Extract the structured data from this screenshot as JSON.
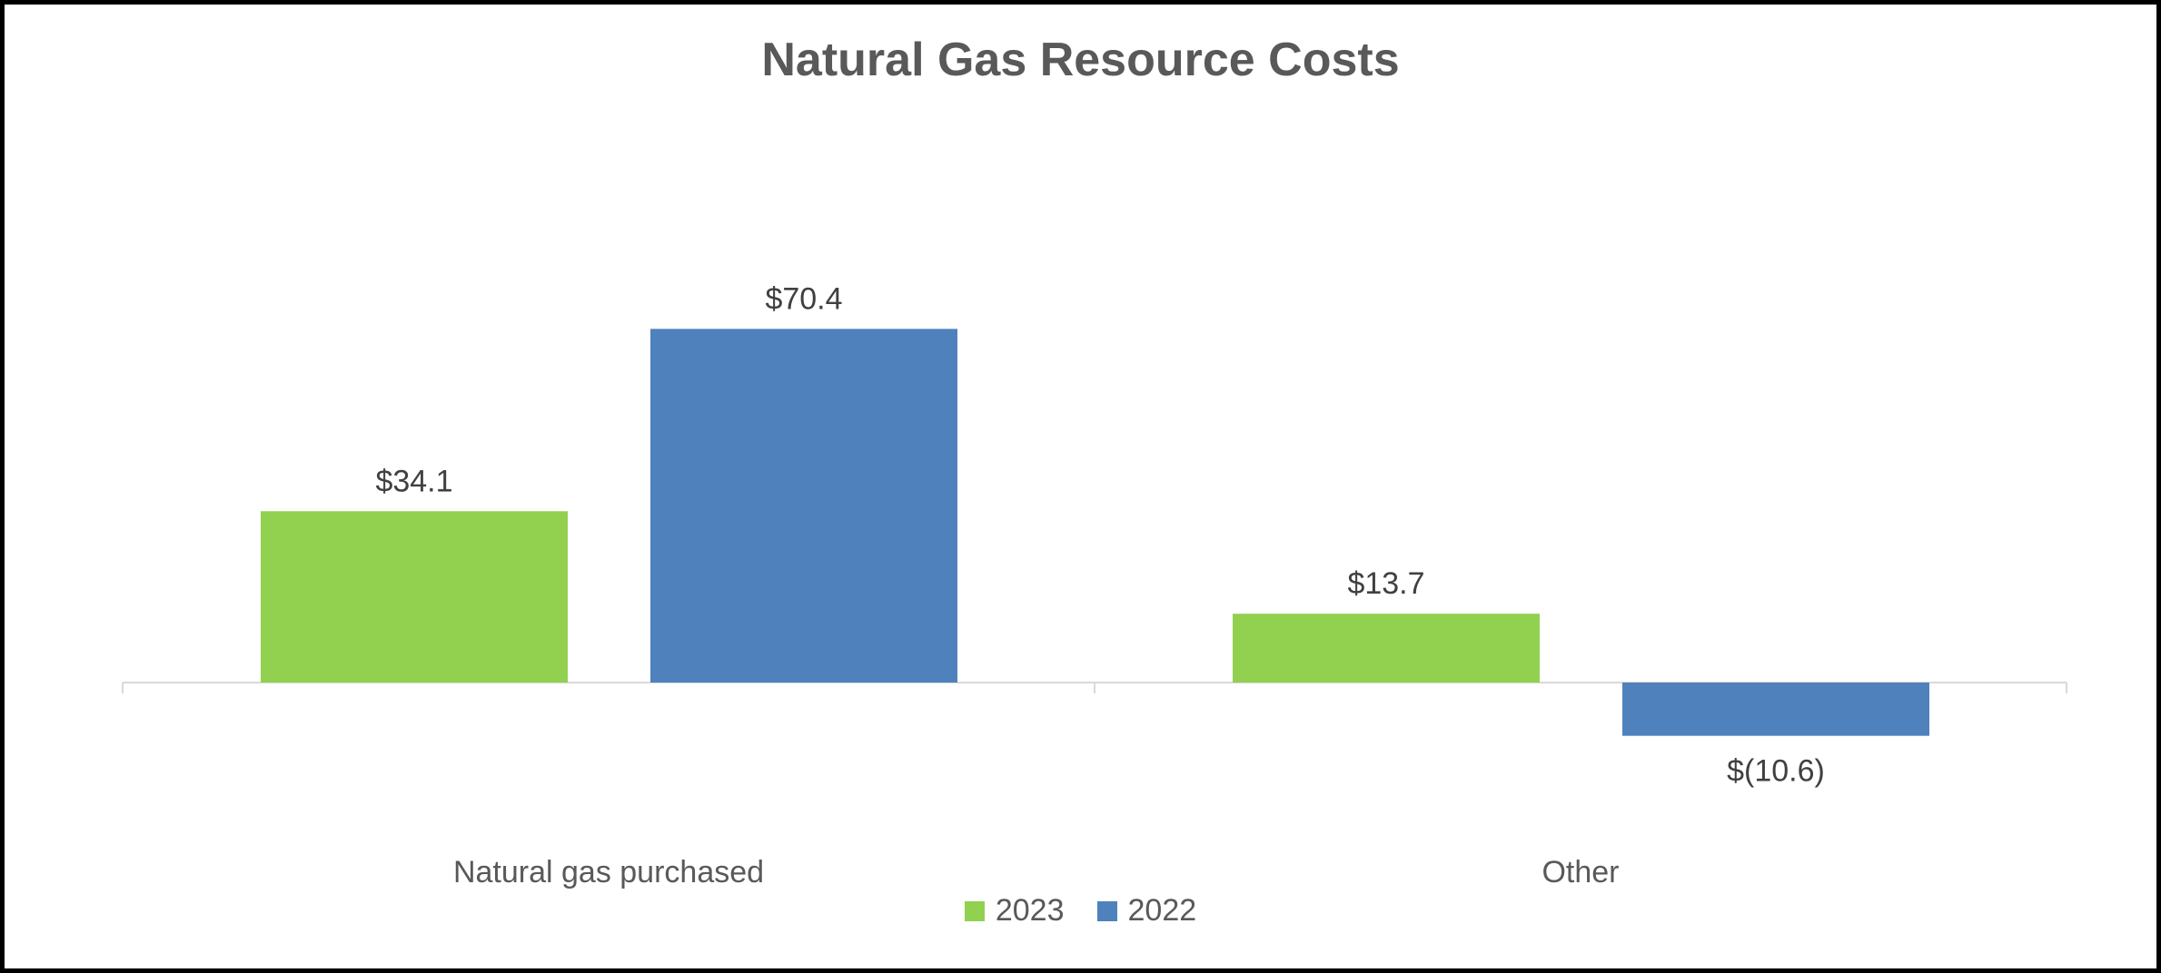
{
  "chart_data": {
    "type": "bar",
    "title": "Natural Gas Resource Costs",
    "categories": [
      "Natural gas purchased",
      "Other"
    ],
    "series": [
      {
        "name": "2023",
        "values": [
          34.1,
          13.7
        ],
        "color": "#92D050",
        "labels": [
          "$34.1",
          "$13.7"
        ]
      },
      {
        "name": "2022",
        "values": [
          70.4,
          -10.6
        ],
        "color": "#4F81BD",
        "labels": [
          "$70.4",
          "$(10.6)"
        ]
      }
    ],
    "ylim": [
      -21,
      80
    ],
    "grid": false,
    "legend_position": "bottom",
    "xlabel": "",
    "ylabel": ""
  }
}
